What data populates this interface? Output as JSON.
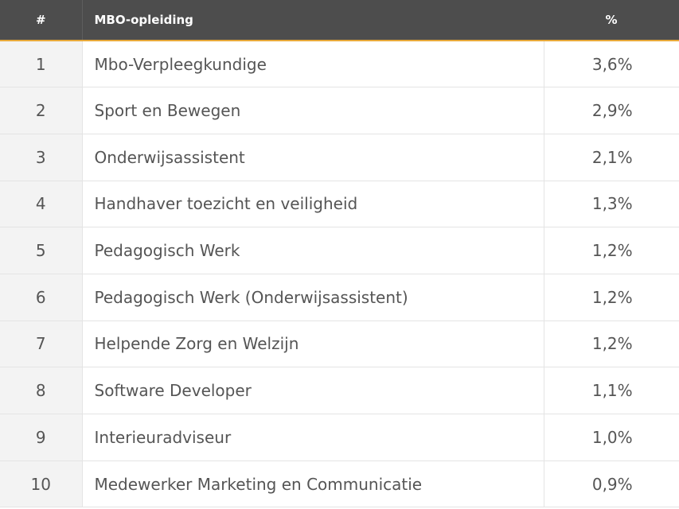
{
  "table": {
    "headers": {
      "rank": "#",
      "program": "MBO-opleiding",
      "percent": "%"
    },
    "rows": [
      {
        "rank": "1",
        "program": "Mbo-Verpleegkundige",
        "percent": "3,6%"
      },
      {
        "rank": "2",
        "program": "Sport en Bewegen",
        "percent": "2,9%"
      },
      {
        "rank": "3",
        "program": "Onderwijsassistent",
        "percent": "2,1%"
      },
      {
        "rank": "4",
        "program": "Handhaver toezicht en veiligheid",
        "percent": "1,3%"
      },
      {
        "rank": "5",
        "program": "Pedagogisch Werk",
        "percent": "1,2%"
      },
      {
        "rank": "6",
        "program": "Pedagogisch Werk (Onderwijsassistent)",
        "percent": "1,2%"
      },
      {
        "rank": "7",
        "program": "Helpende Zorg en Welzijn",
        "percent": "1,2%"
      },
      {
        "rank": "8",
        "program": "Software Developer",
        "percent": "1,1%"
      },
      {
        "rank": "9",
        "program": "Interieuradviseur",
        "percent": "1,0%"
      },
      {
        "rank": "10",
        "program": "Medewerker Marketing en Communicatie",
        "percent": "0,9%"
      }
    ]
  }
}
